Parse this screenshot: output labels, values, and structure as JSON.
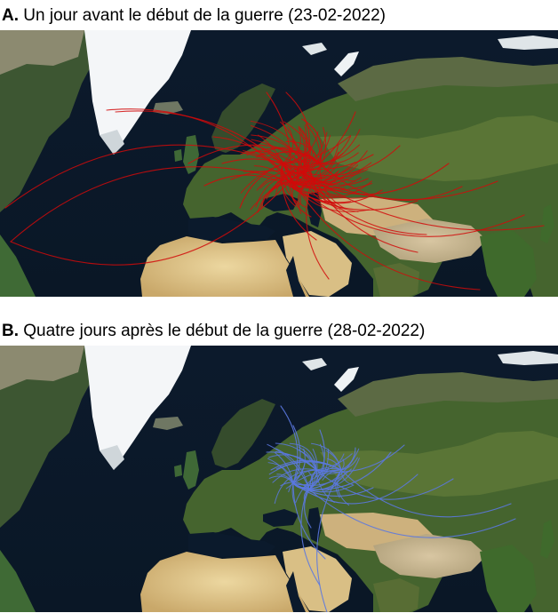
{
  "figure": {
    "panels": [
      {
        "letter": "A.",
        "title": "Un jour avant le début de la guerre (23-02-2022)",
        "route_color": "#d10a0a"
      },
      {
        "letter": "B.",
        "title": "Quatre jours après le début de la guerre (28-02-2022)",
        "route_color": "#5b78e0"
      }
    ]
  }
}
